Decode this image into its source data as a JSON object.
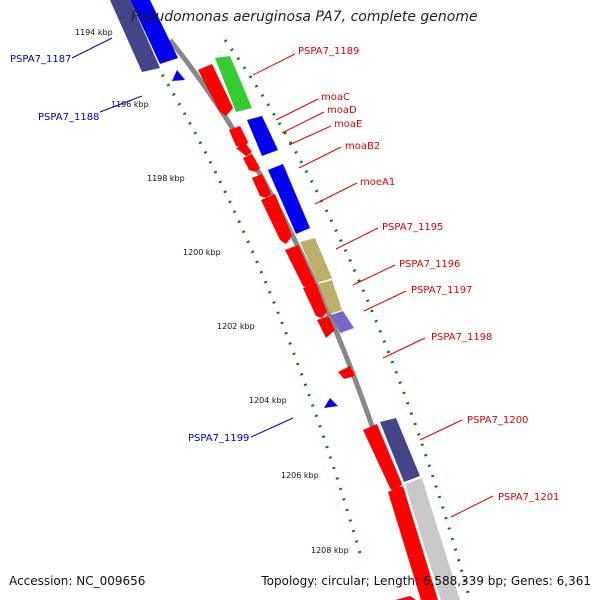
{
  "title": "Pseudomonas aeruginosa PA7, complete genome",
  "footer": {
    "accession": "Accession: NC_009656",
    "topology": "Topology: circular; Length: 6,588,339 bp; Genes: 6,361"
  },
  "ticks": [
    "1194 kbp",
    "1196 kbp",
    "1198 kbp",
    "1200 kbp",
    "1202 kbp",
    "1204 kbp",
    "1206 kbp",
    "1208 kbp"
  ],
  "labels": {
    "PSPA7_1187": "PSPA7_1187",
    "PSPA7_1188": "PSPA7_1188",
    "PSPA7_1189": "PSPA7_1189",
    "moaC": "moaC",
    "moaD": "moaD",
    "moaE": "moaE",
    "moaB2": "moaB2",
    "moeA1": "moeA1",
    "PSPA7_1195": "PSPA7_1195",
    "PSPA7_1196": "PSPA7_1196",
    "PSPA7_1197": "PSPA7_1197",
    "PSPA7_1198": "PSPA7_1198",
    "PSPA7_1199": "PSPA7_1199",
    "PSPA7_1200": "PSPA7_1200",
    "PSPA7_1201": "PSPA7_1201"
  },
  "colors": {
    "forward_label": "#dd0000",
    "reverse_label": "#0000bb",
    "backbone": "#888888",
    "tick_dots": "#117711",
    "cds_red": "#ff0000",
    "cds_blue": "#0000ee",
    "cds_green": "#33cc33",
    "cds_navy": "#444488",
    "cds_olive": "#bbb06a",
    "cds_violet": "#7766cc",
    "cds_grey": "#c8c8c8"
  }
}
